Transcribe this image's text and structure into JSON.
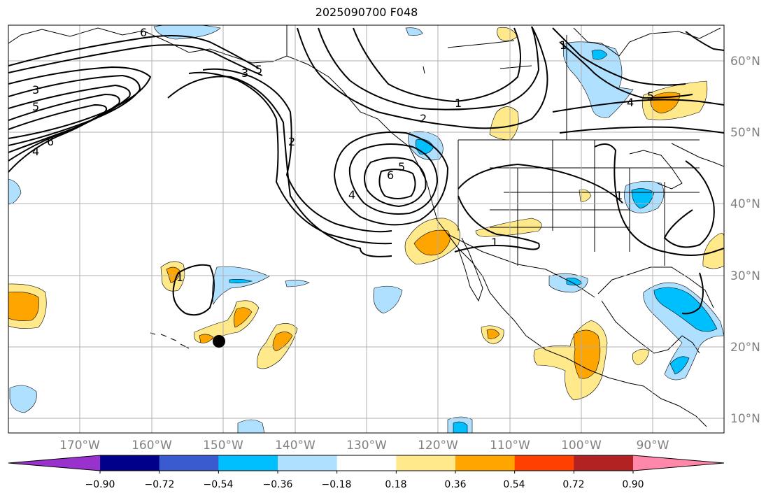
{
  "title": "2025090700 F048",
  "lon_labels": [
    "170°W",
    "160°W",
    "150°W",
    "140°W",
    "130°W",
    "120°W",
    "110°W",
    "100°W",
    "90°W"
  ],
  "lat_labels": [
    "60°N",
    "50°N",
    "40°N",
    "30°N",
    "20°N",
    "10°N"
  ],
  "contour_labels": [
    "6",
    "3",
    "5",
    "3",
    "5",
    "6",
    "4",
    "2",
    "4",
    "5",
    "6",
    "1",
    "2",
    "1",
    "5",
    "4",
    "1",
    "1",
    "1"
  ],
  "colorbar": {
    "colors": [
      "#9932cc",
      "#00008b",
      "#3a5bd0",
      "#00bfff",
      "#b0e0ff",
      "#ffffff",
      "#ffe98a",
      "#ffa500",
      "#ff4000",
      "#b22222",
      "#ff88aa"
    ],
    "tick_labels": [
      "−0.90",
      "−0.72",
      "−0.54",
      "−0.36",
      "−0.18",
      "0.18",
      "0.36",
      "0.54",
      "0.72",
      "0.90"
    ]
  },
  "colors": {
    "axis_label": "#808080",
    "grid": "#b0b0b0",
    "contour": "#000000",
    "light_blue": "#b0e0ff",
    "blue": "#00bfff",
    "yellow": "#ffe98a",
    "orange": "#ffa500"
  }
}
